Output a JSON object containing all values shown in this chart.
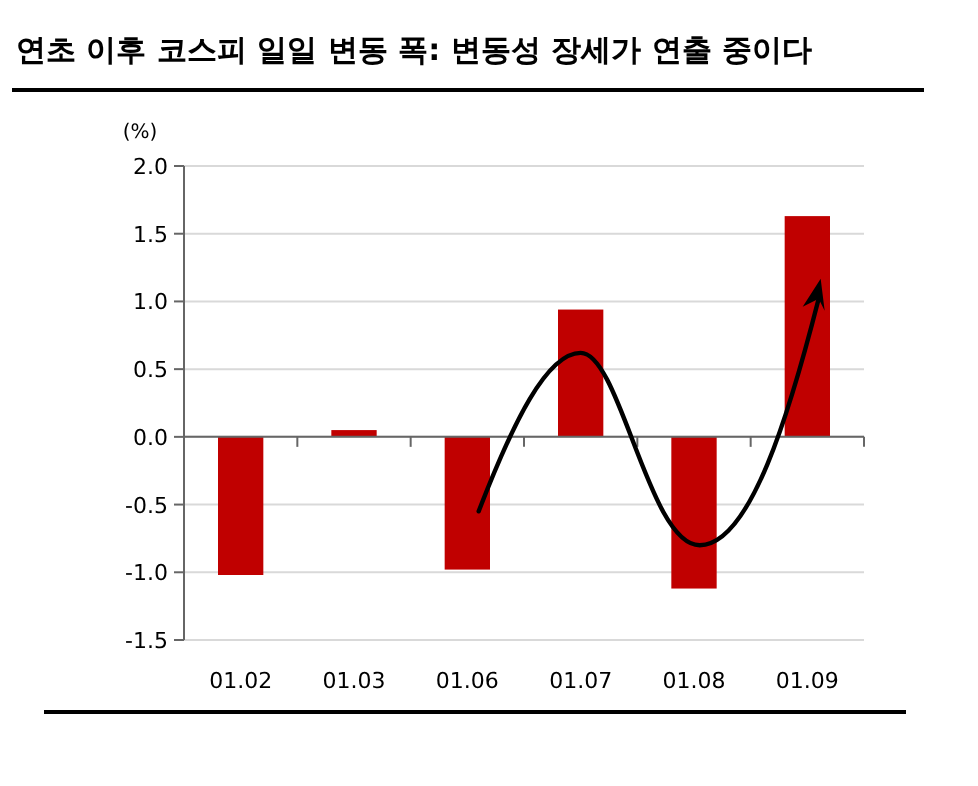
{
  "chart_data": {
    "type": "bar",
    "title": "연초 이후 코스피 일일 변동 폭: 변동성 장세가 연출 중이다",
    "ylabel": "(%)",
    "categories": [
      "01.02",
      "01.03",
      "01.06",
      "01.07",
      "01.08",
      "01.09"
    ],
    "values": [
      -1.02,
      0.05,
      -0.98,
      0.94,
      -1.12,
      1.63
    ],
    "color": "#c00000",
    "ylim": [
      -1.5,
      2.0
    ],
    "yticks": [
      {
        "value": -1.5,
        "label": "-1.5"
      },
      {
        "value": -1.0,
        "label": "-1.0"
      },
      -0.5,
      {
        "value": 0,
        "label": "0.0"
      },
      0.5,
      {
        "value": 1.0,
        "label": "1.0"
      },
      1.5,
      {
        "value": 2.0,
        "label": "2.0"
      }
    ],
    "grid": "y"
  }
}
